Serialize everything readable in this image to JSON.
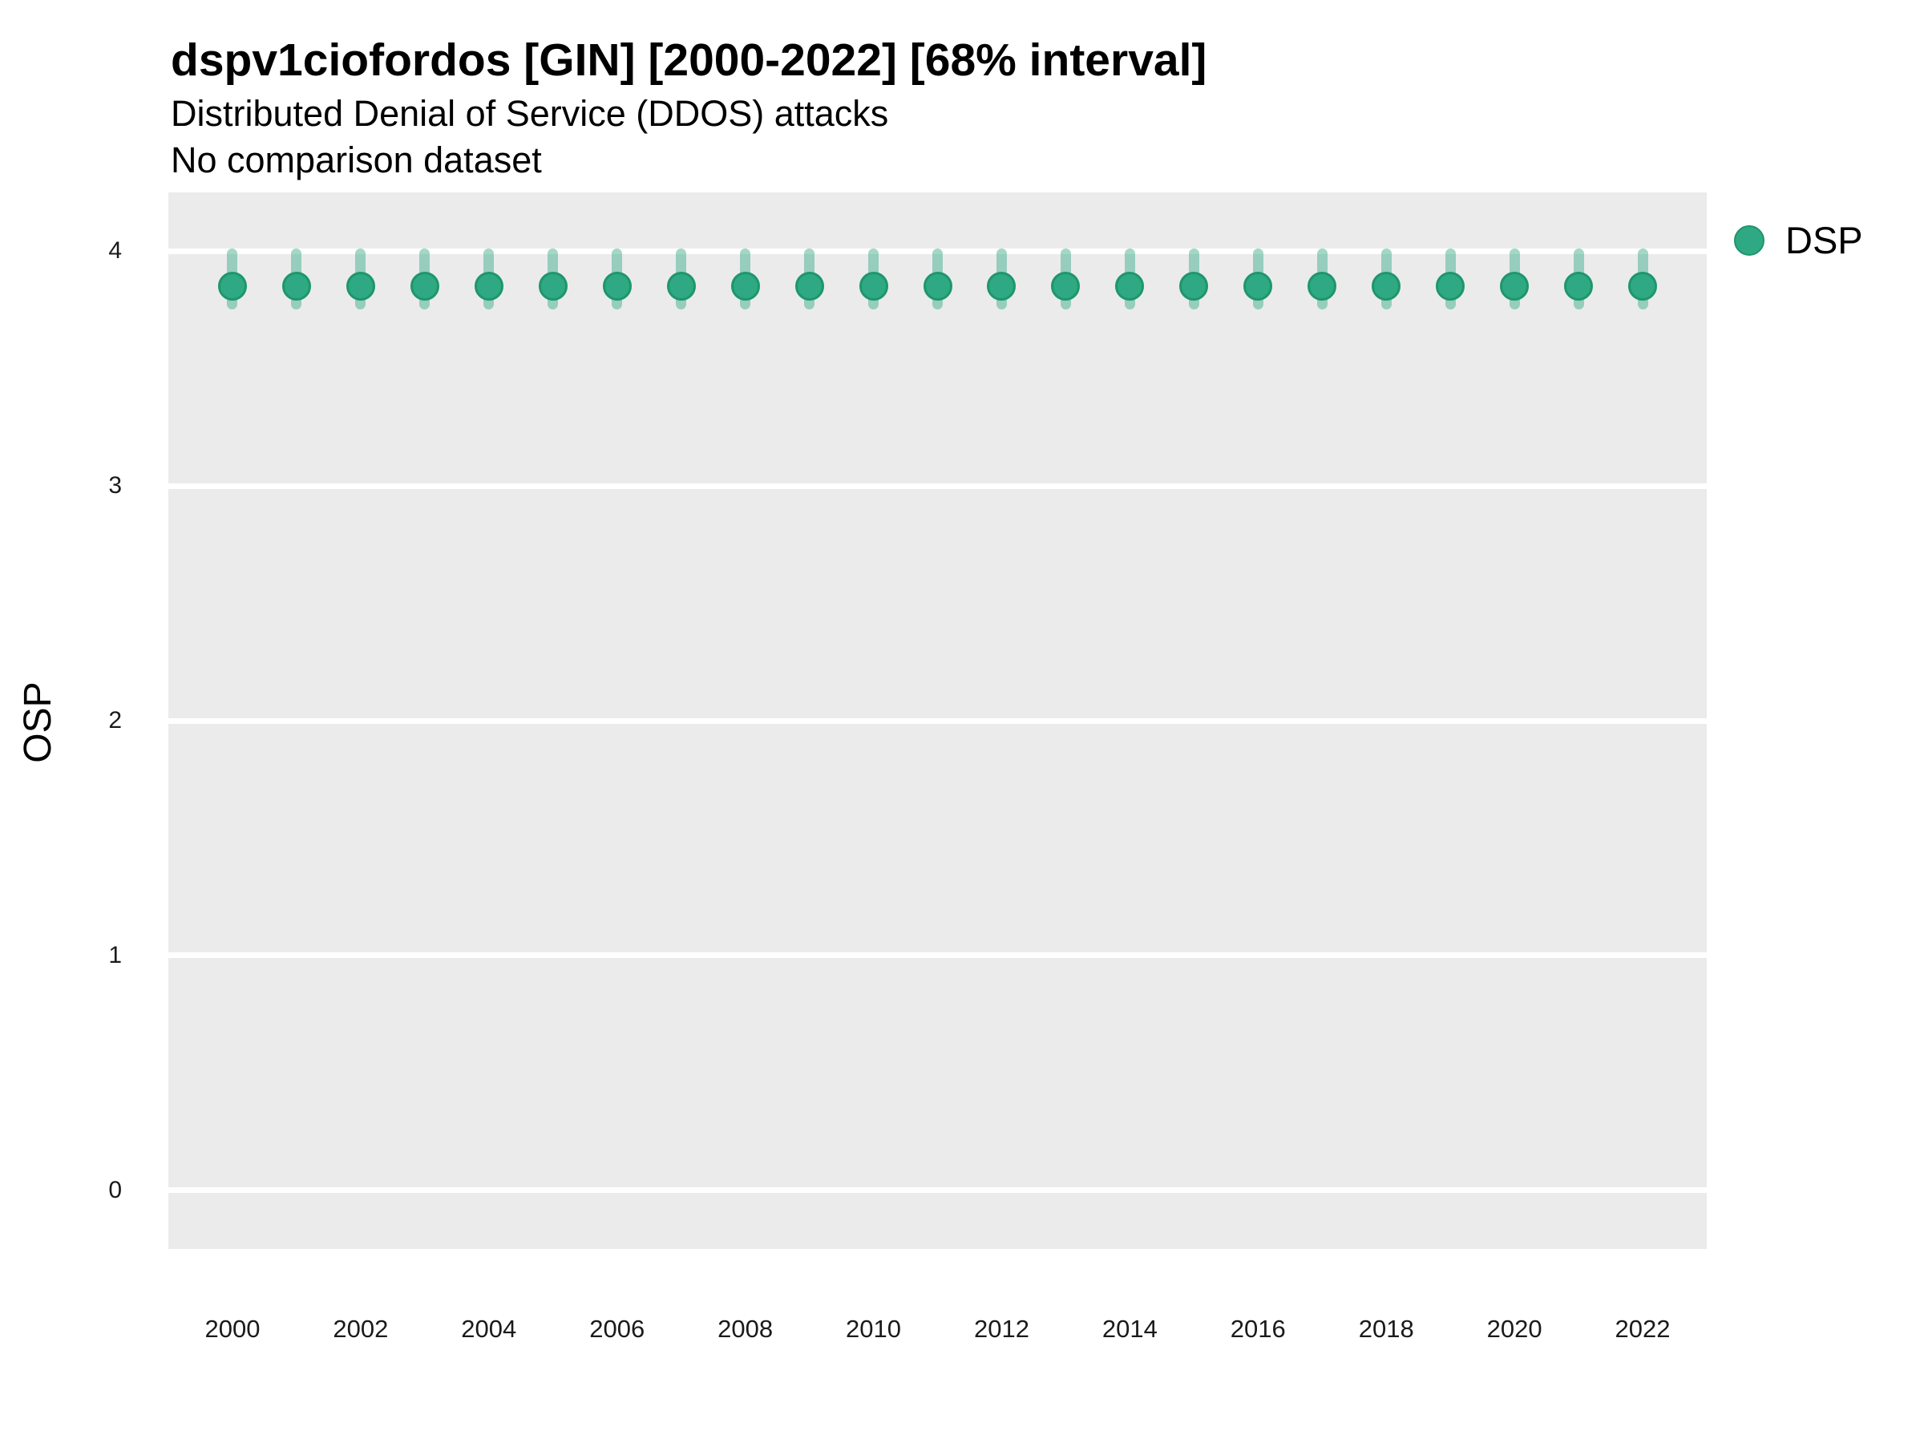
{
  "header": {
    "title": "dspv1ciofordos [GIN] [2000-2022] [68% interval]",
    "subtitle": "Distributed Denial of Service (DDOS) attacks",
    "note": "No comparison dataset"
  },
  "legend": {
    "items": [
      {
        "label": "DSP",
        "color": "#2FA983"
      }
    ]
  },
  "colors": {
    "panel_background": "#EBEBEB",
    "gridline": "#FFFFFF",
    "point_fill": "#2FA983",
    "point_stroke": "#1E966C",
    "interval_fill": "#2FA983",
    "interval_alpha": 0.45,
    "text": "#000000"
  },
  "chart_data": {
    "type": "scatter",
    "title": "dspv1ciofordos [GIN] [2000-2022] [68% interval]",
    "subtitle": "Distributed Denial of Service (DDOS) attacks",
    "note": "No comparison dataset",
    "xlabel": "",
    "ylabel": "OSP",
    "legend_position": "right-top",
    "grid": "horizontal-major-only",
    "xlim": [
      1999,
      2023
    ],
    "ylim": [
      -0.25,
      4.25
    ],
    "y_ticks": [
      0,
      1,
      2,
      3,
      4
    ],
    "x_ticks": [
      2000,
      2002,
      2004,
      2006,
      2008,
      2010,
      2012,
      2014,
      2016,
      2018,
      2020,
      2022
    ],
    "interval_label": "68% interval",
    "series": [
      {
        "name": "DSP",
        "points": [
          {
            "x": 2000,
            "y": 3.85,
            "lo": 3.75,
            "hi": 4.01
          },
          {
            "x": 2001,
            "y": 3.85,
            "lo": 3.75,
            "hi": 4.01
          },
          {
            "x": 2002,
            "y": 3.85,
            "lo": 3.75,
            "hi": 4.01
          },
          {
            "x": 2003,
            "y": 3.85,
            "lo": 3.75,
            "hi": 4.01
          },
          {
            "x": 2004,
            "y": 3.85,
            "lo": 3.75,
            "hi": 4.01
          },
          {
            "x": 2005,
            "y": 3.85,
            "lo": 3.75,
            "hi": 4.01
          },
          {
            "x": 2006,
            "y": 3.85,
            "lo": 3.75,
            "hi": 4.01
          },
          {
            "x": 2007,
            "y": 3.85,
            "lo": 3.75,
            "hi": 4.01
          },
          {
            "x": 2008,
            "y": 3.85,
            "lo": 3.75,
            "hi": 4.01
          },
          {
            "x": 2009,
            "y": 3.85,
            "lo": 3.75,
            "hi": 4.01
          },
          {
            "x": 2010,
            "y": 3.85,
            "lo": 3.75,
            "hi": 4.01
          },
          {
            "x": 2011,
            "y": 3.85,
            "lo": 3.75,
            "hi": 4.01
          },
          {
            "x": 2012,
            "y": 3.85,
            "lo": 3.75,
            "hi": 4.01
          },
          {
            "x": 2013,
            "y": 3.85,
            "lo": 3.75,
            "hi": 4.01
          },
          {
            "x": 2014,
            "y": 3.85,
            "lo": 3.75,
            "hi": 4.01
          },
          {
            "x": 2015,
            "y": 3.85,
            "lo": 3.75,
            "hi": 4.01
          },
          {
            "x": 2016,
            "y": 3.85,
            "lo": 3.75,
            "hi": 4.01
          },
          {
            "x": 2017,
            "y": 3.85,
            "lo": 3.75,
            "hi": 4.01
          },
          {
            "x": 2018,
            "y": 3.85,
            "lo": 3.75,
            "hi": 4.01
          },
          {
            "x": 2019,
            "y": 3.85,
            "lo": 3.75,
            "hi": 4.01
          },
          {
            "x": 2020,
            "y": 3.85,
            "lo": 3.75,
            "hi": 4.01
          },
          {
            "x": 2021,
            "y": 3.85,
            "lo": 3.75,
            "hi": 4.01
          },
          {
            "x": 2022,
            "y": 3.85,
            "lo": 3.75,
            "hi": 4.01
          }
        ]
      }
    ]
  }
}
